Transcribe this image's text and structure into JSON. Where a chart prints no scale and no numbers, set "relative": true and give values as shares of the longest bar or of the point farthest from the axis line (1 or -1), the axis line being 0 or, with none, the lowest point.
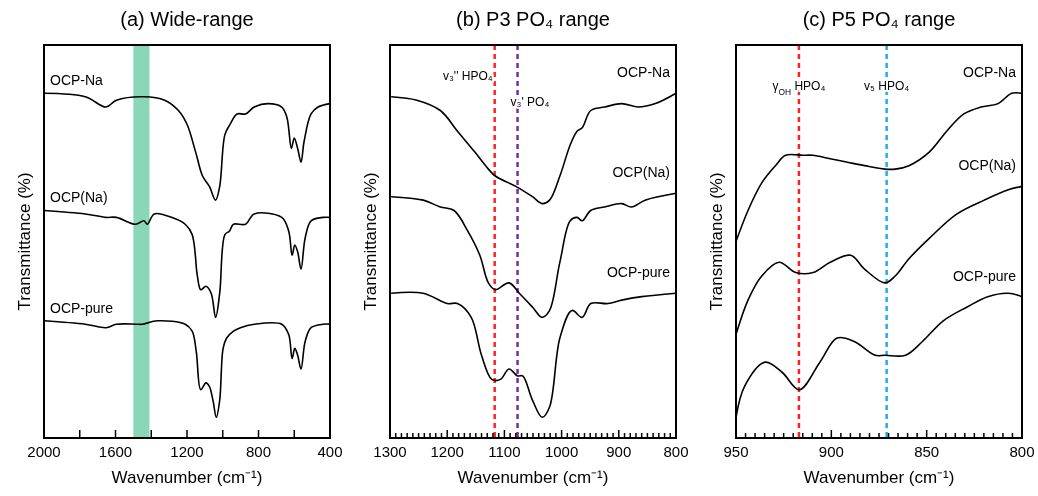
{
  "chart_data": [
    {
      "type": "line",
      "title": "(a) Wide-range",
      "xlabel": "Wavenumber (cm⁻¹)",
      "ylabel": "Transmittance (%)",
      "relative": true,
      "xlim": [
        2000,
        400
      ],
      "xticks": [
        2000,
        {
          "value": 1800,
          "label": null
        },
        1600,
        {
          "value": 1400,
          "label": null
        },
        1200,
        {
          "value": 1000,
          "label": null
        },
        800,
        {
          "value": 600,
          "label": null
        },
        400
      ],
      "bands": [
        {
          "axis": "x",
          "from": 1500,
          "to": 1410,
          "color": "#88d8b8"
        }
      ],
      "series": [
        {
          "name": "OCP-Na",
          "color": "#000000",
          "x": [
            2000,
            1769,
            1653,
            1595,
            1441,
            1325,
            1248,
            1200,
            1152,
            1113,
            1075,
            1040,
            1017,
            988,
            959,
            920,
            872,
            824,
            747,
            670,
            641,
            616,
            600,
            581,
            562,
            545,
            506,
            467,
            400
          ],
          "values": [
            1.0,
            0.99,
            0.96,
            0.98,
            0.99,
            0.98,
            0.95,
            0.91,
            0.83,
            0.76,
            0.73,
            0.69,
            0.73,
            0.88,
            0.91,
            0.94,
            0.94,
            0.96,
            0.97,
            0.96,
            0.93,
            0.84,
            0.87,
            0.84,
            0.8,
            0.86,
            0.94,
            0.96,
            0.97
          ]
        },
        {
          "name": "OCP(Na)",
          "color": "#000000",
          "x": [
            2000,
            1769,
            1653,
            1595,
            1489,
            1441,
            1422,
            1383,
            1287,
            1210,
            1171,
            1142,
            1123,
            1094,
            1065,
            1040,
            1017,
            988,
            963,
            940,
            872,
            824,
            670,
            631,
            612,
            597,
            581,
            562,
            539,
            506,
            439,
            400
          ],
          "values": [
            0.66,
            0.65,
            0.64,
            0.64,
            0.62,
            0.63,
            0.62,
            0.65,
            0.64,
            0.62,
            0.59,
            0.47,
            0.43,
            0.44,
            0.42,
            0.35,
            0.42,
            0.59,
            0.6,
            0.62,
            0.62,
            0.65,
            0.64,
            0.6,
            0.53,
            0.56,
            0.54,
            0.49,
            0.58,
            0.63,
            0.64,
            0.64
          ]
        },
        {
          "name": "OCP-pure",
          "color": "#000000",
          "x": [
            2000,
            1769,
            1653,
            1595,
            1480,
            1451,
            1364,
            1210,
            1171,
            1148,
            1123,
            1094,
            1075,
            1055,
            1036,
            1017,
            998,
            978,
            940,
            901,
            824,
            670,
            631,
            612,
            597,
            581,
            562,
            539,
            506,
            439,
            400
          ],
          "values": [
            0.34,
            0.33,
            0.32,
            0.33,
            0.33,
            0.33,
            0.34,
            0.33,
            0.31,
            0.25,
            0.14,
            0.16,
            0.15,
            0.11,
            0.06,
            0.11,
            0.26,
            0.29,
            0.31,
            0.32,
            0.33,
            0.33,
            0.3,
            0.23,
            0.26,
            0.24,
            0.2,
            0.28,
            0.32,
            0.33,
            0.33
          ]
        }
      ]
    },
    {
      "type": "line",
      "title": "(b) P3 PO₄ range",
      "xlabel": "Wavenumber (cm⁻¹)",
      "ylabel": "Transmittance (%)",
      "relative": true,
      "xlim": [
        1300,
        800
      ],
      "xticks": [
        1300,
        {
          "value": 1290,
          "label": null
        },
        {
          "value": 1280,
          "label": null
        },
        {
          "value": 1270,
          "label": null
        },
        {
          "value": 1260,
          "label": null
        },
        {
          "value": 1250,
          "label": null
        },
        {
          "value": 1240,
          "label": null
        },
        {
          "value": 1230,
          "label": null
        },
        {
          "value": 1220,
          "label": null
        },
        {
          "value": 1210,
          "label": null
        },
        1200,
        {
          "value": 1190,
          "label": null
        },
        {
          "value": 1180,
          "label": null
        },
        {
          "value": 1170,
          "label": null
        },
        {
          "value": 1160,
          "label": null
        },
        {
          "value": 1150,
          "label": null
        },
        {
          "value": 1140,
          "label": null
        },
        {
          "value": 1130,
          "label": null
        },
        {
          "value": 1120,
          "label": null
        },
        {
          "value": 1110,
          "label": null
        },
        1100,
        {
          "value": 1090,
          "label": null
        },
        {
          "value": 1080,
          "label": null
        },
        {
          "value": 1070,
          "label": null
        },
        {
          "value": 1060,
          "label": null
        },
        {
          "value": 1050,
          "label": null
        },
        {
          "value": 1040,
          "label": null
        },
        {
          "value": 1030,
          "label": null
        },
        {
          "value": 1020,
          "label": null
        },
        {
          "value": 1010,
          "label": null
        },
        1000,
        {
          "value": 990,
          "label": null
        },
        {
          "value": 980,
          "label": null
        },
        {
          "value": 970,
          "label": null
        },
        {
          "value": 960,
          "label": null
        },
        {
          "value": 950,
          "label": null
        },
        {
          "value": 940,
          "label": null
        },
        {
          "value": 930,
          "label": null
        },
        {
          "value": 920,
          "label": null
        },
        {
          "value": 910,
          "label": null
        },
        900,
        {
          "value": 890,
          "label": null
        },
        {
          "value": 880,
          "label": null
        },
        {
          "value": 870,
          "label": null
        },
        {
          "value": 860,
          "label": null
        },
        {
          "value": 850,
          "label": null
        },
        {
          "value": 840,
          "label": null
        },
        {
          "value": 830,
          "label": null
        },
        {
          "value": 820,
          "label": null
        },
        {
          "value": 810,
          "label": null
        },
        800
      ],
      "ref_lines": [
        {
          "axis": "x",
          "value": 1117,
          "label": "v₃'' HPO₄",
          "color": "#ff2020",
          "line_style": "dashed"
        },
        {
          "axis": "x",
          "value": 1077,
          "label": "v₃' PO₄",
          "color": "#7b2ca0",
          "line_style": "dashed"
        }
      ],
      "series": [
        {
          "name": "OCP-Na",
          "color": "#000000",
          "x": [
            1298,
            1253,
            1212,
            1182,
            1152,
            1128,
            1116,
            1080,
            1051,
            1034,
            1021,
            1003,
            985,
            973,
            964,
            949,
            925,
            895,
            866,
            836,
            800
          ],
          "values": [
            0.99,
            0.98,
            0.95,
            0.89,
            0.83,
            0.78,
            0.76,
            0.73,
            0.7,
            0.68,
            0.69,
            0.76,
            0.85,
            0.89,
            0.9,
            0.95,
            0.96,
            0.97,
            0.96,
            0.97,
            1.0
          ]
        },
        {
          "name": "OCP(Na)",
          "color": "#000000",
          "x": [
            1298,
            1242,
            1212,
            1188,
            1164,
            1143,
            1128,
            1116,
            1092,
            1074,
            1051,
            1034,
            1021,
            1003,
            985,
            973,
            964,
            949,
            925,
            895,
            878,
            854,
            800
          ],
          "values": [
            0.7,
            0.69,
            0.67,
            0.66,
            0.6,
            0.53,
            0.45,
            0.43,
            0.45,
            0.42,
            0.38,
            0.35,
            0.37,
            0.51,
            0.63,
            0.64,
            0.63,
            0.66,
            0.67,
            0.68,
            0.67,
            0.69,
            0.71
          ]
        },
        {
          "name": "OCP-pure",
          "color": "#000000",
          "x": [
            1298,
            1242,
            1200,
            1182,
            1158,
            1140,
            1122,
            1107,
            1092,
            1077,
            1068,
            1051,
            1034,
            1021,
            1003,
            982,
            964,
            949,
            919,
            895,
            860,
            800
          ],
          "values": [
            0.42,
            0.42,
            0.39,
            0.39,
            0.35,
            0.24,
            0.17,
            0.17,
            0.2,
            0.18,
            0.18,
            0.11,
            0.06,
            0.09,
            0.29,
            0.37,
            0.35,
            0.39,
            0.39,
            0.4,
            0.41,
            0.42
          ]
        }
      ]
    },
    {
      "type": "line",
      "title": "(c) P5 PO₄ range",
      "xlabel": "Wavenumber (cm⁻¹)",
      "ylabel": "Transmittance (%)",
      "relative": true,
      "xlim": [
        950,
        800
      ],
      "xticks": [
        950,
        {
          "value": 945,
          "label": null
        },
        {
          "value": 940,
          "label": null
        },
        {
          "value": 935,
          "label": null
        },
        {
          "value": 930,
          "label": null
        },
        {
          "value": 925,
          "label": null
        },
        {
          "value": 920,
          "label": null
        },
        {
          "value": 915,
          "label": null
        },
        {
          "value": 910,
          "label": null
        },
        {
          "value": 905,
          "label": null
        },
        900,
        {
          "value": 895,
          "label": null
        },
        {
          "value": 890,
          "label": null
        },
        {
          "value": 885,
          "label": null
        },
        {
          "value": 880,
          "label": null
        },
        {
          "value": 875,
          "label": null
        },
        {
          "value": 870,
          "label": null
        },
        {
          "value": 865,
          "label": null
        },
        {
          "value": 860,
          "label": null
        },
        {
          "value": 855,
          "label": null
        },
        850,
        {
          "value": 845,
          "label": null
        },
        {
          "value": 840,
          "label": null
        },
        {
          "value": 835,
          "label": null
        },
        {
          "value": 830,
          "label": null
        },
        {
          "value": 825,
          "label": null
        },
        {
          "value": 820,
          "label": null
        },
        {
          "value": 815,
          "label": null
        },
        {
          "value": 810,
          "label": null
        },
        {
          "value": 805,
          "label": null
        },
        800
      ],
      "ref_lines": [
        {
          "axis": "x",
          "value": 917,
          "label": "γ$_{OH}$ HPO₄",
          "color": "#ff2020",
          "line_style": "dashed"
        },
        {
          "axis": "x",
          "value": 871,
          "label": "v₅ HPO₄",
          "color": "#1ab0e8",
          "line_style": "dashed"
        }
      ],
      "series": [
        {
          "name": "OCP-Na",
          "color": "#000000",
          "x": [
            950,
            943.7,
            936.5,
            929.3,
            924,
            915,
            909.8,
            900.6,
            891.6,
            882.6,
            871.9,
            866.5,
            859.3,
            848.5,
            839.5,
            830.5,
            821.6,
            812.6,
            805.4,
            800
          ],
          "values": [
            0.57,
            0.66,
            0.74,
            0.79,
            0.82,
            0.82,
            0.82,
            0.81,
            0.8,
            0.79,
            0.78,
            0.78,
            0.79,
            0.83,
            0.89,
            0.94,
            0.96,
            0.97,
            1.0,
            1.0
          ]
        },
        {
          "name": "OCP(Na)",
          "color": "#000000",
          "x": [
            950,
            943.7,
            936.5,
            927.5,
            918.6,
            909.6,
            900.6,
            889.8,
            882.6,
            871.9,
            866.5,
            859.3,
            848.5,
            834.1,
            819.8,
            807.2,
            800
          ],
          "values": [
            0.3,
            0.4,
            0.47,
            0.51,
            0.48,
            0.48,
            0.51,
            0.53,
            0.49,
            0.45,
            0.47,
            0.52,
            0.58,
            0.65,
            0.69,
            0.72,
            0.73
          ]
        },
        {
          "name": "OCP-pure",
          "color": "#000000",
          "x": [
            950,
            945.5,
            934.7,
            925.7,
            916.8,
            906,
            897,
            888,
            877,
            871.9,
            861.1,
            852.2,
            841.3,
            828.8,
            818,
            807.2,
            800
          ],
          "values": [
            0.06,
            0.15,
            0.22,
            0.19,
            0.14,
            0.22,
            0.29,
            0.28,
            0.24,
            0.24,
            0.24,
            0.28,
            0.34,
            0.38,
            0.41,
            0.42,
            0.41
          ]
        }
      ]
    }
  ]
}
